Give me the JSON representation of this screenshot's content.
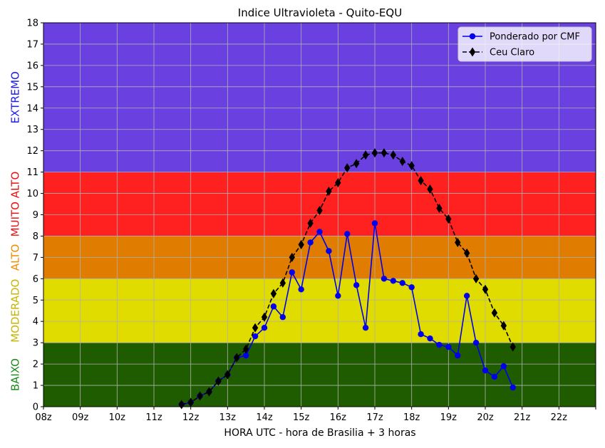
{
  "chart_data": {
    "type": "line",
    "title": "Indice Ultravioleta - Quito-EQU",
    "xlabel": "HORA UTC - hora de Brasilia + 3 horas",
    "ylabel": "",
    "xlim": [
      8,
      23
    ],
    "ylim": [
      0,
      18
    ],
    "x_ticks": [
      {
        "value": 8,
        "label": "08z"
      },
      {
        "value": 9,
        "label": "09z"
      },
      {
        "value": 10,
        "label": "10z"
      },
      {
        "value": 11,
        "label": "11z"
      },
      {
        "value": 12,
        "label": "12z"
      },
      {
        "value": 13,
        "label": "13z"
      },
      {
        "value": 14,
        "label": "14z"
      },
      {
        "value": 15,
        "label": "15z"
      },
      {
        "value": 16,
        "label": "16z"
      },
      {
        "value": 17,
        "label": "17z"
      },
      {
        "value": 18,
        "label": "18z"
      },
      {
        "value": 19,
        "label": "19z"
      },
      {
        "value": 20,
        "label": "20z"
      },
      {
        "value": 21,
        "label": "21z"
      },
      {
        "value": 22,
        "label": "22z"
      },
      {
        "value": 23,
        "label": ""
      }
    ],
    "y_ticks": [
      0,
      1,
      2,
      3,
      4,
      5,
      6,
      7,
      8,
      9,
      10,
      11,
      12,
      13,
      14,
      15,
      16,
      17,
      18
    ],
    "grid": true,
    "legend": "top-right",
    "bands": [
      {
        "label": "BAIXO",
        "from": 0,
        "to": 3,
        "color": "#1f5c00",
        "label_color": "#1a8a1a"
      },
      {
        "label": "MODERADO",
        "from": 3,
        "to": 6,
        "color": "#e0dc00",
        "label_color": "#c8b400"
      },
      {
        "label": "ALTO",
        "from": 6,
        "to": 8,
        "color": "#e07c00",
        "label_color": "#f08c00"
      },
      {
        "label": "MUITO ALTO",
        "from": 8,
        "to": 11,
        "color": "#ff2020",
        "label_color": "#e81010"
      },
      {
        "label": "EXTREMO",
        "from": 11,
        "to": 18,
        "color": "#6a40e0",
        "label_color": "#1a1aee"
      }
    ],
    "series": [
      {
        "name": "Ponderado por CMF",
        "color": "#0000ee",
        "marker": "circle",
        "linestyle": "solid",
        "x": [
          11.75,
          12.0,
          12.25,
          12.5,
          12.75,
          13.0,
          13.25,
          13.5,
          13.75,
          14.0,
          14.25,
          14.5,
          14.75,
          15.0,
          15.25,
          15.5,
          15.75,
          16.0,
          16.25,
          16.5,
          16.75,
          17.0,
          17.25,
          17.5,
          17.75,
          18.0,
          18.25,
          18.5,
          18.75,
          19.0,
          19.25,
          19.5,
          19.75,
          20.0,
          20.25,
          20.5,
          20.75
        ],
        "y": [
          0.1,
          0.2,
          0.5,
          0.7,
          1.2,
          1.5,
          2.3,
          2.4,
          3.3,
          3.7,
          4.7,
          4.2,
          6.3,
          5.5,
          7.7,
          8.2,
          7.3,
          5.2,
          8.1,
          5.7,
          3.7,
          8.6,
          6.0,
          5.9,
          5.8,
          5.6,
          3.4,
          3.2,
          2.9,
          2.8,
          2.4,
          5.2,
          3.0,
          1.7,
          1.4,
          1.9,
          0.9
        ]
      },
      {
        "name": "Ceu Claro",
        "color": "#000000",
        "marker": "thin-diamond",
        "linestyle": "dashed",
        "x": [
          11.75,
          12.0,
          12.25,
          12.5,
          12.75,
          13.0,
          13.25,
          13.5,
          13.75,
          14.0,
          14.25,
          14.5,
          14.75,
          15.0,
          15.25,
          15.5,
          15.75,
          16.0,
          16.25,
          16.5,
          16.75,
          17.0,
          17.25,
          17.5,
          17.75,
          18.0,
          18.25,
          18.5,
          18.75,
          19.0,
          19.25,
          19.5,
          19.75,
          20.0,
          20.25,
          20.5,
          20.75
        ],
        "y": [
          0.1,
          0.2,
          0.5,
          0.7,
          1.2,
          1.5,
          2.3,
          2.7,
          3.7,
          4.2,
          5.3,
          5.8,
          7.0,
          7.6,
          8.6,
          9.2,
          10.1,
          10.5,
          11.2,
          11.4,
          11.8,
          11.9,
          11.9,
          11.8,
          11.5,
          11.3,
          10.6,
          10.2,
          9.3,
          8.8,
          7.7,
          7.2,
          6.0,
          5.5,
          4.4,
          3.8,
          2.8
        ]
      }
    ]
  }
}
